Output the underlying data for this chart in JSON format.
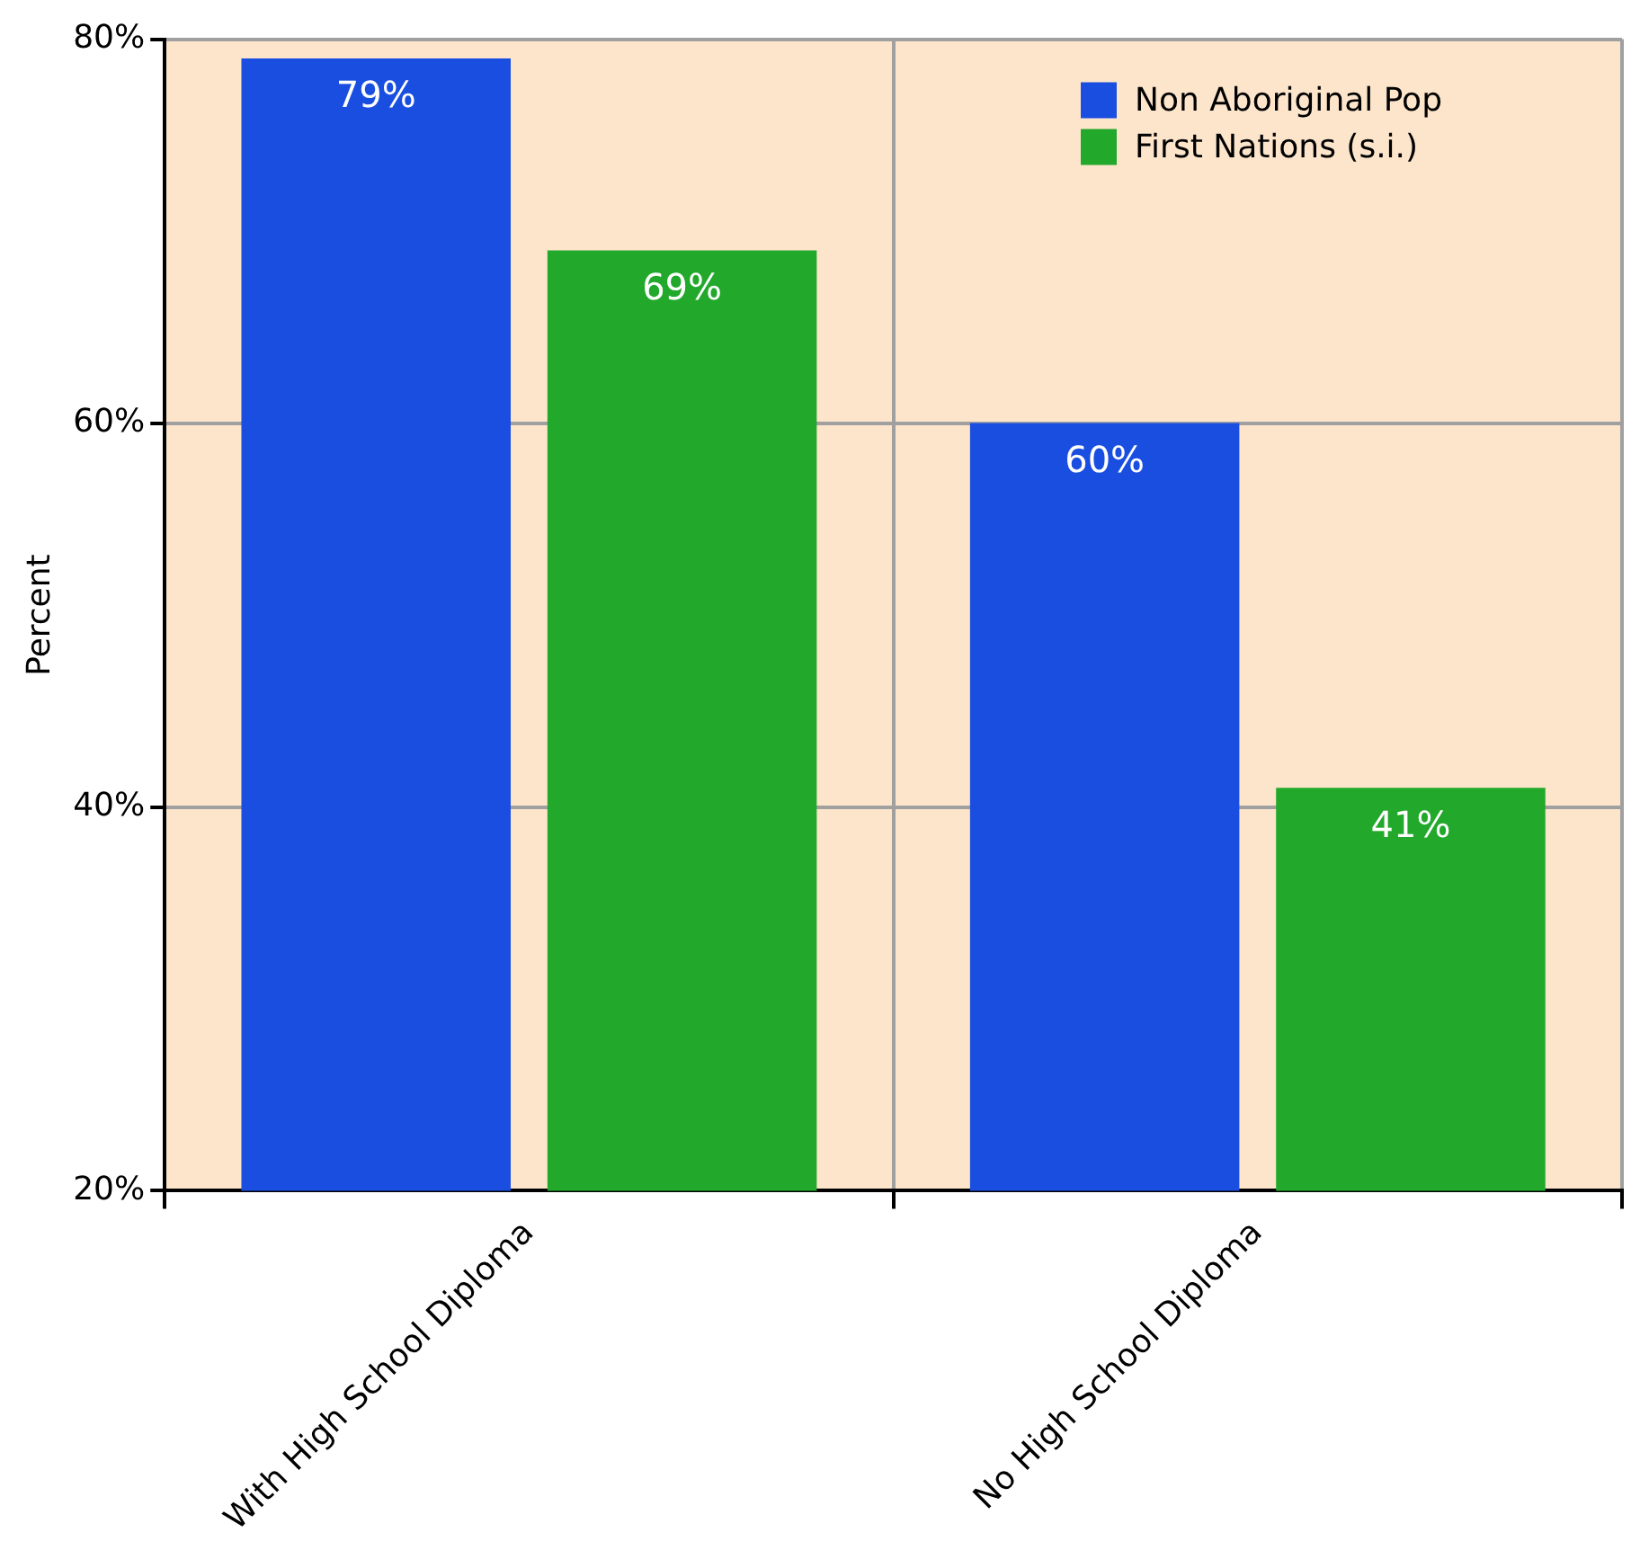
{
  "chart_data": {
    "type": "bar",
    "ylabel": "Percent",
    "categories": [
      "With High School Diploma",
      "No High School Diploma"
    ],
    "series": [
      {
        "name": "Non Aboriginal Pop",
        "color": "#1a4ee0",
        "values": [
          79,
          60
        ],
        "value_labels": [
          "79%",
          "60%"
        ]
      },
      {
        "name": "First Nations (s.i.)",
        "color": "#22a82a",
        "values": [
          69,
          41
        ],
        "value_labels": [
          "69%",
          "41%"
        ]
      }
    ],
    "ylim": [
      20,
      80
    ],
    "yticks": [
      {
        "value": 20,
        "label": "20%"
      },
      {
        "value": 40,
        "label": "40%"
      },
      {
        "value": 60,
        "label": "60%"
      },
      {
        "value": 80,
        "label": "80%"
      }
    ],
    "grid": true,
    "legend": "top right"
  }
}
